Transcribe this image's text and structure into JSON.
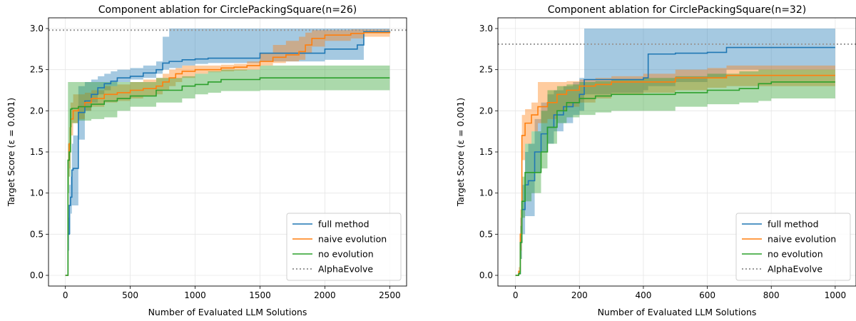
{
  "chart_data": [
    {
      "type": "line",
      "title": "Component ablation for CirclePackingSquare(n=26)",
      "xlabel": "Number of Evaluated LLM Solutions",
      "ylabel": "Target Score (ε = 0.001)",
      "xlim": [
        -130,
        2630
      ],
      "ylim": [
        -0.13,
        3.13
      ],
      "xticks": [
        0,
        500,
        1000,
        1500,
        2000,
        2500
      ],
      "yticks": [
        0.0,
        0.5,
        1.0,
        1.5,
        2.0,
        2.5,
        3.0
      ],
      "grid": true,
      "legend_position": "lower-right",
      "reference": {
        "name": "AlphaEvolve",
        "value": 2.98,
        "color": "#999999"
      },
      "series": [
        {
          "name": "full method",
          "color": "#1f77b4",
          "x": [
            0,
            20,
            30,
            40,
            50,
            60,
            100,
            150,
            200,
            250,
            300,
            350,
            400,
            500,
            600,
            700,
            750,
            800,
            900,
            1000,
            1100,
            1500,
            2000,
            2250,
            2300,
            2500
          ],
          "y": [
            0.0,
            0.5,
            0.85,
            0.95,
            1.28,
            1.3,
            1.98,
            2.12,
            2.2,
            2.28,
            2.33,
            2.36,
            2.4,
            2.42,
            2.46,
            2.5,
            2.58,
            2.6,
            2.62,
            2.63,
            2.64,
            2.7,
            2.75,
            2.8,
            2.96,
            2.97
          ],
          "band_low": [
            0.0,
            0.3,
            0.5,
            0.75,
            0.85,
            0.85,
            1.65,
            2.0,
            2.1,
            2.2,
            2.25,
            2.3,
            2.35,
            2.38,
            2.4,
            2.45,
            2.5,
            2.52,
            2.55,
            2.57,
            2.58,
            2.6,
            2.62,
            2.62,
            2.95,
            2.95
          ],
          "band_high": [
            0.0,
            0.7,
            1.1,
            1.2,
            1.6,
            1.7,
            2.3,
            2.35,
            2.38,
            2.42,
            2.45,
            2.48,
            2.5,
            2.52,
            2.55,
            2.6,
            2.9,
            3.0,
            3.0,
            3.0,
            3.0,
            3.0,
            3.0,
            3.0,
            3.0,
            3.0
          ]
        },
        {
          "name": "naive evolution",
          "color": "#ff7f0e",
          "x": [
            0,
            20,
            30,
            40,
            60,
            100,
            150,
            200,
            300,
            400,
            500,
            600,
            700,
            750,
            800,
            850,
            900,
            1000,
            1100,
            1200,
            1300,
            1400,
            1500,
            1600,
            1700,
            1800,
            1850,
            1900,
            2000,
            2200,
            2300,
            2500
          ],
          "y": [
            0.0,
            1.4,
            1.6,
            1.9,
            2.0,
            2.05,
            2.1,
            2.15,
            2.2,
            2.22,
            2.25,
            2.27,
            2.3,
            2.35,
            2.4,
            2.45,
            2.48,
            2.5,
            2.5,
            2.52,
            2.53,
            2.55,
            2.6,
            2.65,
            2.68,
            2.72,
            2.8,
            2.88,
            2.92,
            2.94,
            2.95,
            2.96
          ],
          "band_low": [
            0.0,
            1.2,
            1.3,
            1.7,
            1.85,
            1.9,
            2.0,
            2.05,
            2.1,
            2.12,
            2.15,
            2.18,
            2.2,
            2.25,
            2.3,
            2.35,
            2.4,
            2.45,
            2.47,
            2.48,
            2.49,
            2.5,
            2.55,
            2.58,
            2.6,
            2.62,
            2.7,
            2.78,
            2.85,
            2.88,
            2.9,
            2.92
          ],
          "band_high": [
            0.0,
            1.6,
            1.8,
            2.1,
            2.2,
            2.2,
            2.22,
            2.25,
            2.3,
            2.32,
            2.35,
            2.38,
            2.4,
            2.45,
            2.5,
            2.52,
            2.55,
            2.55,
            2.55,
            2.56,
            2.57,
            2.6,
            2.7,
            2.8,
            2.85,
            2.9,
            2.95,
            2.98,
            2.98,
            2.99,
            2.99,
            3.0
          ]
        },
        {
          "name": "no evolution",
          "color": "#2ca02c",
          "x": [
            0,
            20,
            30,
            40,
            50,
            100,
            200,
            300,
            400,
            500,
            700,
            900,
            1000,
            1100,
            1200,
            1500,
            2000,
            2500
          ],
          "y": [
            0.0,
            1.4,
            1.5,
            2.02,
            2.03,
            2.05,
            2.08,
            2.12,
            2.15,
            2.18,
            2.25,
            2.3,
            2.32,
            2.35,
            2.38,
            2.4,
            2.4,
            2.4
          ],
          "band_low": [
            0.0,
            1.0,
            1.2,
            1.8,
            1.85,
            1.88,
            1.9,
            1.92,
            2.0,
            2.05,
            2.1,
            2.15,
            2.2,
            2.22,
            2.24,
            2.25,
            2.25,
            2.25
          ],
          "band_high": [
            0.0,
            2.35,
            2.35,
            2.35,
            2.35,
            2.35,
            2.35,
            2.35,
            2.35,
            2.35,
            2.4,
            2.42,
            2.45,
            2.48,
            2.5,
            2.55,
            2.55,
            2.55
          ]
        }
      ]
    },
    {
      "type": "line",
      "title": "Component ablation for CirclePackingSquare(n=32)",
      "xlabel": "Number of Evaluated LLM Solutions",
      "ylabel": "Target Score (ε = 0.001)",
      "xlim": [
        -55,
        1065
      ],
      "ylim": [
        -0.13,
        3.13
      ],
      "xticks": [
        0,
        200,
        400,
        600,
        800,
        1000
      ],
      "yticks": [
        0.0,
        0.5,
        1.0,
        1.5,
        2.0,
        2.5,
        3.0
      ],
      "grid": true,
      "legend_position": "lower-right",
      "reference": {
        "name": "AlphaEvolve",
        "value": 2.81,
        "color": "#999999"
      },
      "series": [
        {
          "name": "full method",
          "color": "#1f77b4",
          "x": [
            0,
            10,
            15,
            20,
            30,
            40,
            60,
            80,
            100,
            120,
            150,
            180,
            200,
            215,
            300,
            400,
            415,
            500,
            600,
            660,
            800,
            1000
          ],
          "y": [
            0.0,
            0.02,
            0.4,
            0.8,
            1.1,
            1.15,
            1.5,
            1.72,
            1.8,
            1.95,
            2.05,
            2.1,
            2.2,
            2.38,
            2.38,
            2.4,
            2.69,
            2.7,
            2.71,
            2.77,
            2.77,
            2.77
          ],
          "band_low": [
            0.0,
            0.01,
            0.2,
            0.5,
            0.72,
            0.72,
            1.25,
            1.5,
            1.6,
            1.75,
            1.85,
            1.95,
            2.0,
            2.2,
            2.22,
            2.25,
            2.3,
            2.35,
            2.4,
            2.5,
            2.5,
            2.5
          ],
          "band_high": [
            0.0,
            0.05,
            0.7,
            1.1,
            1.5,
            1.6,
            1.9,
            2.1,
            2.2,
            2.25,
            2.3,
            2.35,
            2.4,
            3.0,
            3.0,
            3.0,
            3.0,
            3.0,
            3.0,
            3.0,
            3.0,
            3.0
          ]
        },
        {
          "name": "naive evolution",
          "color": "#ff7f0e",
          "x": [
            0,
            10,
            15,
            20,
            30,
            50,
            70,
            100,
            130,
            160,
            200,
            250,
            300,
            400,
            500,
            600,
            660,
            700,
            800,
            1000
          ],
          "y": [
            0.0,
            0.05,
            0.5,
            1.7,
            1.85,
            1.95,
            2.05,
            2.1,
            2.2,
            2.25,
            2.3,
            2.32,
            2.35,
            2.35,
            2.4,
            2.4,
            2.43,
            2.43,
            2.43,
            2.43
          ],
          "band_low": [
            0.0,
            0.02,
            0.3,
            1.4,
            1.6,
            1.75,
            1.85,
            1.9,
            2.0,
            2.05,
            2.1,
            2.15,
            2.2,
            2.22,
            2.25,
            2.28,
            2.3,
            2.3,
            2.3,
            2.3
          ],
          "band_high": [
            0.0,
            0.1,
            0.8,
            1.95,
            2.02,
            2.1,
            2.35,
            2.35,
            2.35,
            2.36,
            2.38,
            2.4,
            2.42,
            2.45,
            2.5,
            2.52,
            2.55,
            2.55,
            2.55,
            2.55
          ]
        },
        {
          "name": "no evolution",
          "color": "#2ca02c",
          "x": [
            0,
            10,
            15,
            20,
            30,
            50,
            80,
            100,
            130,
            160,
            200,
            250,
            300,
            400,
            500,
            600,
            700,
            760,
            800,
            1000
          ],
          "y": [
            0.0,
            0.02,
            0.4,
            0.9,
            1.25,
            1.25,
            1.5,
            1.8,
            2.0,
            2.1,
            2.15,
            2.18,
            2.2,
            2.2,
            2.22,
            2.25,
            2.27,
            2.33,
            2.35,
            2.35
          ],
          "band_low": [
            0.0,
            0.01,
            0.2,
            0.7,
            0.9,
            1.0,
            1.3,
            1.6,
            1.85,
            1.92,
            1.95,
            1.98,
            2.0,
            2.0,
            2.05,
            2.08,
            2.1,
            2.12,
            2.15,
            2.15
          ],
          "band_high": [
            0.0,
            0.05,
            0.6,
            1.2,
            1.6,
            1.75,
            2.0,
            2.25,
            2.3,
            2.32,
            2.35,
            2.36,
            2.38,
            2.4,
            2.42,
            2.45,
            2.48,
            2.5,
            2.5,
            2.5
          ]
        }
      ]
    }
  ]
}
